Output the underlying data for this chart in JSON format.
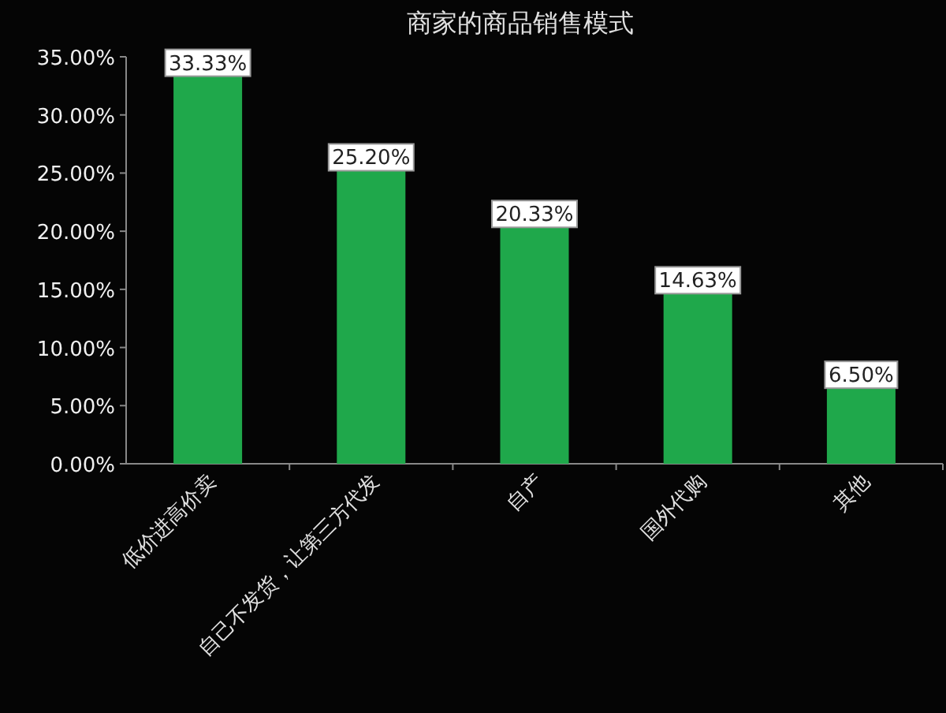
{
  "chart_data": {
    "type": "bar",
    "title": "商家的商品销售模式",
    "categories": [
      "低价进高价卖",
      "自己不发货，让第三方代发",
      "自产",
      "国外代购",
      "其他"
    ],
    "values": [
      33.33,
      25.2,
      20.33,
      14.63,
      6.5
    ],
    "value_labels": [
      "33.33%",
      "25.20%",
      "20.33%",
      "14.63%",
      "6.50%"
    ],
    "color": "#1fa84b",
    "ylim": [
      0,
      35
    ],
    "yticks": [
      {
        "value": 0,
        "label": "0.00%"
      },
      {
        "value": 5,
        "label": "5.00%"
      },
      {
        "value": 10,
        "label": "10.00%"
      },
      {
        "value": 15,
        "label": "15.00%"
      },
      {
        "value": 20,
        "label": "20.00%"
      },
      {
        "value": 25,
        "label": "25.00%"
      },
      {
        "value": 30,
        "label": "30.00%"
      },
      {
        "value": 35,
        "label": "35.00%"
      }
    ]
  }
}
